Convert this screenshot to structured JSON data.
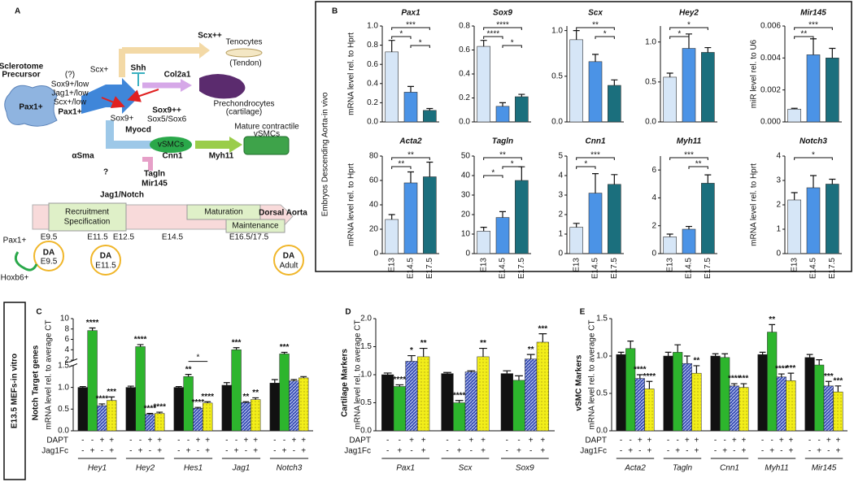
{
  "figure": {
    "panel_b_label": "B",
    "in_vivo_label": "Embryos Descending Aorta-in vivo",
    "in_vitro_label": "E13.5 MEFs-in vitro"
  },
  "diagram": {
    "texts": [
      "A",
      "Scx++",
      "Tenocytes",
      "(Tendon)",
      "Shh",
      "Scx+",
      "Col2a1",
      "Prechondrocytes",
      "(cartilage)",
      "Sox9++",
      "Sox5/Sox6",
      "Sox9+",
      "Sclerotome",
      "Precursor",
      "(?)",
      "Sox9+/low",
      "Jag1+/low",
      "Scx+/low",
      "Pax1+",
      "Pax1+",
      "αSma",
      "Myocd",
      "vSMCs",
      "Mature contractile",
      "vSMCs",
      "Tagln",
      "Mir145",
      "Jag1/Notch",
      "Cnn1",
      "Myh11",
      "?",
      "Recruitment",
      "Specification",
      "Maturation",
      "Maintenance",
      "Dorsal Aorta",
      "E9.5",
      "E11.5",
      "E12.5",
      "E14.5",
      "E16.5/17.5",
      "Pax1+",
      "Hoxb6+",
      "DA",
      "E9.5",
      "DA",
      "E11.5",
      "DA",
      "Adult"
    ]
  },
  "chart_data": [
    {
      "type": "bar",
      "title": "Pax1",
      "ylabel": "mRNA level rel. to Hprt",
      "values": [
        0.73,
        0.31,
        0.12
      ],
      "errors": [
        0.12,
        0.06,
        0.02
      ],
      "colors": [
        "#d6e6f7",
        "#4b93e6",
        "#1b6f7d"
      ],
      "ylim": [
        0,
        1
      ],
      "yticks": [
        {
          "value": 0,
          "label": "0.0"
        },
        0.2,
        0.4,
        0.6,
        0.8,
        {
          "value": 1,
          "label": "1.0"
        }
      ],
      "significance": [
        {
          "text": "***",
          "span": [
            0,
            2
          ]
        },
        {
          "text": "*",
          "span": [
            0,
            1
          ]
        },
        {
          "text": "*",
          "span": [
            1,
            2
          ]
        }
      ]
    },
    {
      "type": "bar",
      "title": "Sox9",
      "values": [
        0.63,
        0.13,
        0.21
      ],
      "errors": [
        0.05,
        0.03,
        0.02
      ],
      "colors": [
        "#d6e6f7",
        "#4b93e6",
        "#1b6f7d"
      ],
      "ylim": [
        0,
        0.8
      ],
      "yticks": [
        {
          "value": 0,
          "label": "0.0"
        },
        0.2,
        0.4,
        0.6,
        0.8
      ],
      "significance": [
        {
          "text": "****",
          "span": [
            0,
            2
          ]
        },
        {
          "text": "****",
          "span": [
            0,
            1
          ]
        },
        {
          "text": "*",
          "span": [
            1,
            2
          ]
        }
      ]
    },
    {
      "type": "bar",
      "title": "Scx",
      "values": [
        0.9,
        0.66,
        0.4
      ],
      "errors": [
        0.1,
        0.08,
        0.06
      ],
      "colors": [
        "#d6e6f7",
        "#4b93e6",
        "#1b6f7d"
      ],
      "ylim": [
        0,
        1.05
      ],
      "yticks": [
        {
          "value": 0,
          "label": "0.0"
        },
        0.5,
        {
          "value": 1,
          "label": "1.0"
        }
      ],
      "significance": [
        {
          "text": "**",
          "span": [
            0,
            2
          ]
        },
        {
          "text": "*",
          "span": [
            1,
            2
          ]
        }
      ]
    },
    {
      "type": "bar",
      "title": "Hey2",
      "values": [
        0.56,
        0.92,
        0.87
      ],
      "errors": [
        0.05,
        0.18,
        0.06
      ],
      "colors": [
        "#d6e6f7",
        "#4b93e6",
        "#1b6f7d"
      ],
      "ylim": [
        0,
        1.2
      ],
      "yticks": [
        {
          "value": 0,
          "label": "0.0"
        },
        0.5,
        {
          "value": 1,
          "label": "1.0"
        }
      ],
      "significance": [
        {
          "text": "*",
          "span": [
            0,
            2
          ]
        },
        {
          "text": "*",
          "span": [
            0,
            1
          ]
        }
      ]
    },
    {
      "type": "bar",
      "title": "Mir145",
      "ylabel": "miR level rel. to U6",
      "values": [
        0.0008,
        0.0042,
        0.004
      ],
      "errors": [
        5e-05,
        0.001,
        0.0006
      ],
      "colors": [
        "#d6e6f7",
        "#4b93e6",
        "#1b6f7d"
      ],
      "ylim": [
        0,
        0.006
      ],
      "yticks": [
        {
          "value": 0,
          "label": "0.000"
        },
        {
          "value": 0.002,
          "label": "0.002"
        },
        {
          "value": 0.004,
          "label": "0.004"
        },
        {
          "value": 0.006,
          "label": "0.006"
        }
      ],
      "significance": [
        {
          "text": "***",
          "span": [
            0,
            2
          ]
        },
        {
          "text": "**",
          "span": [
            0,
            1
          ]
        }
      ]
    },
    {
      "type": "bar",
      "title": "Acta2",
      "ylabel": "mRNA level rel. to Hprt",
      "categories": [
        "E13",
        "E14.5",
        "E17.5"
      ],
      "values": [
        28,
        58,
        63
      ],
      "errors": [
        4,
        9,
        12
      ],
      "colors": [
        "#d6e6f7",
        "#4b93e6",
        "#1b6f7d"
      ],
      "ylim": [
        0,
        80
      ],
      "yticks": [
        0,
        20,
        40,
        60,
        80
      ],
      "significance": [
        {
          "text": "**",
          "span": [
            0,
            2
          ]
        },
        {
          "text": "**",
          "span": [
            0,
            1
          ]
        }
      ]
    },
    {
      "type": "bar",
      "title": "Tagln",
      "categories": [
        "E13",
        "E14.5",
        "E17.5"
      ],
      "values": [
        11.5,
        18.5,
        37.5
      ],
      "errors": [
        2,
        3,
        7
      ],
      "colors": [
        "#d6e6f7",
        "#4b93e6",
        "#1b6f7d"
      ],
      "ylim": [
        0,
        50
      ],
      "yticks": [
        0,
        10,
        20,
        30,
        40,
        50
      ],
      "significance": [
        {
          "text": "**",
          "span": [
            0,
            2
          ]
        },
        {
          "text": "*",
          "span": [
            1,
            2
          ]
        },
        {
          "text": "*",
          "span": [
            0,
            1
          ]
        }
      ]
    },
    {
      "type": "bar",
      "title": "Cnn1",
      "categories": [
        "E13",
        "E14.5",
        "E17.5"
      ],
      "values": [
        1.35,
        3.1,
        3.55
      ],
      "errors": [
        0.2,
        1.0,
        0.5
      ],
      "colors": [
        "#d6e6f7",
        "#4b93e6",
        "#1b6f7d"
      ],
      "ylim": [
        0,
        5
      ],
      "yticks": [
        0,
        1,
        2,
        3,
        4,
        5
      ],
      "significance": [
        {
          "text": "***",
          "span": [
            0,
            2
          ]
        },
        {
          "text": "*",
          "span": [
            0,
            1
          ]
        }
      ]
    },
    {
      "type": "bar",
      "title": "Myh11",
      "categories": [
        "E13",
        "E14.5",
        "E17.5"
      ],
      "values": [
        1.2,
        1.75,
        5.05
      ],
      "errors": [
        0.2,
        0.2,
        0.6
      ],
      "colors": [
        "#d6e6f7",
        "#4b93e6",
        "#1b6f7d"
      ],
      "ylim": [
        0,
        7
      ],
      "yticks": [
        0,
        2,
        4,
        6
      ],
      "significance": [
        {
          "text": "***",
          "span": [
            0,
            2
          ]
        },
        {
          "text": "**",
          "span": [
            1,
            2
          ]
        }
      ]
    },
    {
      "type": "bar",
      "title": "Notch3",
      "ylabel": "mRNA level rel. to Hprt",
      "categories": [
        "E13",
        "E14.5",
        "E17.5"
      ],
      "values": [
        2.2,
        2.7,
        2.85
      ],
      "errors": [
        0.3,
        0.5,
        0.2
      ],
      "colors": [
        "#d6e6f7",
        "#4b93e6",
        "#1b6f7d"
      ],
      "ylim": [
        0,
        4
      ],
      "yticks": [
        0,
        1,
        2,
        3,
        4
      ],
      "significance": [
        {
          "text": "*",
          "span": [
            0,
            2
          ]
        }
      ]
    },
    {
      "type": "grouped_bar",
      "panel": "C",
      "side_label": "Notch Target genes",
      "ylabel": "mRNA level rel. to average CT",
      "groups": [
        "Hey1",
        "Hey2",
        "Hes1",
        "Jag1",
        "Notch3"
      ],
      "treatments": [
        {
          "name": "DAPT",
          "signs": [
            "-",
            "-",
            "+",
            "+"
          ]
        },
        {
          "name": "Jag1Fc",
          "signs": [
            "-",
            "+",
            "-",
            "+"
          ]
        }
      ],
      "ylim": [
        0,
        10
      ],
      "ybreak": [
        1.5,
        2
      ],
      "yticks": [
        {
          "value": 0,
          "label": "0.0"
        },
        0.5,
        {
          "value": 1,
          "label": "1.0"
        },
        1.5,
        2,
        4,
        6,
        8,
        10
      ],
      "series": [
        {
          "color": "#111111",
          "values": [
            1.0,
            1.0,
            1.0,
            1.05,
            1.1
          ],
          "errors": [
            0.02,
            0.03,
            0.02,
            0.06,
            0.08
          ],
          "significance": [
            null,
            null,
            null,
            null,
            null
          ]
        },
        {
          "color": "#2db52d",
          "values": [
            7.7,
            4.6,
            1.25,
            4.0,
            3.2
          ],
          "errors": [
            0.5,
            0.4,
            0.05,
            0.4,
            0.3
          ],
          "significance": [
            "****",
            "****",
            "**",
            "***",
            "***"
          ]
        },
        {
          "color": "#3a4fb5",
          "pattern": "hatch",
          "values": [
            0.58,
            0.38,
            0.52,
            0.65,
            1.15
          ],
          "errors": [
            0.04,
            0.02,
            0.02,
            0.02,
            0.03
          ],
          "significance": [
            "****",
            "****",
            "****",
            "**",
            null
          ]
        },
        {
          "color": "#f2ee1a",
          "pattern": "dots",
          "values": [
            0.7,
            0.4,
            0.64,
            0.72,
            1.22
          ],
          "errors": [
            0.08,
            0.03,
            0.03,
            0.04,
            0.03
          ],
          "significance": [
            "***",
            "****",
            "****",
            "**",
            null
          ]
        }
      ],
      "brackets": [
        {
          "text": "*",
          "group": 2,
          "span": [
            1,
            3
          ]
        }
      ]
    },
    {
      "type": "grouped_bar",
      "panel": "D",
      "side_label": "Cartilage Markers",
      "ylabel": "mRNA level rel. to average CT",
      "groups": [
        "Pax1",
        "Scx",
        "Sox9"
      ],
      "treatments": [
        {
          "name": "DAPT",
          "signs": [
            "-",
            "-",
            "+",
            "+"
          ]
        },
        {
          "name": "Jag1Fc",
          "signs": [
            "-",
            "+",
            "-",
            "+"
          ]
        }
      ],
      "ylim": [
        0,
        2
      ],
      "yticks": [
        {
          "value": 0,
          "label": "0.0"
        },
        0.5,
        {
          "value": 1,
          "label": "1.0"
        },
        1.5,
        {
          "value": 2,
          "label": "2.0"
        }
      ],
      "series": [
        {
          "color": "#111111",
          "values": [
            1.0,
            1.02,
            1.02
          ],
          "errors": [
            0.03,
            0.02,
            0.05
          ],
          "significance": [
            null,
            null,
            null
          ]
        },
        {
          "color": "#2db52d",
          "values": [
            0.79,
            0.5,
            0.9
          ],
          "errors": [
            0.03,
            0.04,
            0.08
          ],
          "significance": [
            "****",
            "****",
            null
          ]
        },
        {
          "color": "#3a4fb5",
          "pattern": "hatch",
          "values": [
            1.24,
            1.05,
            1.28
          ],
          "errors": [
            0.1,
            0.02,
            0.08
          ],
          "significance": [
            "*",
            null,
            "**"
          ]
        },
        {
          "color": "#f2ee1a",
          "pattern": "dots",
          "values": [
            1.32,
            1.32,
            1.58
          ],
          "errors": [
            0.15,
            0.15,
            0.15
          ],
          "significance": [
            "**",
            "**",
            "***"
          ]
        }
      ]
    },
    {
      "type": "grouped_bar",
      "panel": "E",
      "side_label": "vSMC Markers",
      "ylabel": "mRNA level rel. to average CT",
      "groups": [
        "Acta2",
        "Tagln",
        "Cnn1",
        "Myh11",
        "Mir145"
      ],
      "treatments": [
        {
          "name": "DAPT",
          "signs": [
            "-",
            "-",
            "+",
            "+"
          ]
        },
        {
          "name": "Jag1Fc",
          "signs": [
            "-",
            "+",
            "-",
            "+"
          ]
        }
      ],
      "ylim": [
        0,
        1.5
      ],
      "yticks": [
        {
          "value": 0,
          "label": "0.0"
        },
        0.5,
        {
          "value": 1,
          "label": "1.0"
        },
        1.5
      ],
      "series": [
        {
          "color": "#111111",
          "values": [
            1.02,
            1.0,
            1.0,
            1.02,
            0.98
          ],
          "errors": [
            0.03,
            0.05,
            0.03,
            0.03,
            0.04
          ],
          "significance": [
            null,
            null,
            null,
            null,
            null
          ]
        },
        {
          "color": "#2db52d",
          "values": [
            1.1,
            1.05,
            0.98,
            1.32,
            0.88
          ],
          "errors": [
            0.1,
            0.1,
            0.05,
            0.1,
            0.07
          ],
          "significance": [
            null,
            null,
            null,
            "**",
            null
          ]
        },
        {
          "color": "#3a4fb5",
          "pattern": "hatch",
          "values": [
            0.7,
            0.9,
            0.6,
            0.72,
            0.6
          ],
          "errors": [
            0.05,
            0.1,
            0.03,
            0.04,
            0.06
          ],
          "significance": [
            "****",
            null,
            "****",
            "****",
            "***"
          ]
        },
        {
          "color": "#f2ee1a",
          "pattern": "dots",
          "values": [
            0.56,
            0.77,
            0.58,
            0.67,
            0.52
          ],
          "errors": [
            0.1,
            0.1,
            0.05,
            0.1,
            0.08
          ],
          "significance": [
            "****",
            "**",
            "***",
            "***",
            "***"
          ]
        }
      ]
    }
  ]
}
